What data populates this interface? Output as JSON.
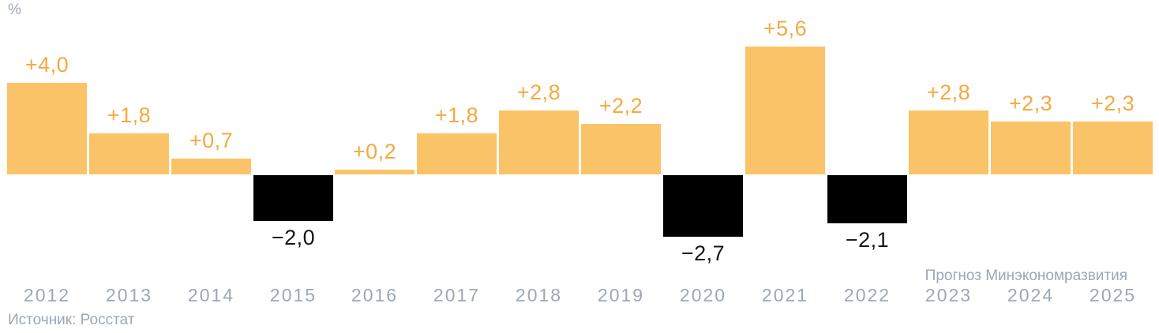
{
  "chart_data": {
    "type": "bar",
    "title": "",
    "unit_label": "%",
    "categories": [
      "2012",
      "2013",
      "2014",
      "2015",
      "2016",
      "2017",
      "2018",
      "2019",
      "2020",
      "2021",
      "2022",
      "2023",
      "2024",
      "2025"
    ],
    "values": [
      4.0,
      1.8,
      0.7,
      -2.0,
      0.2,
      1.8,
      2.8,
      2.2,
      -2.7,
      5.6,
      -2.1,
      2.8,
      2.3,
      2.3
    ],
    "value_labels": [
      "+4,0",
      "+1,8",
      "+0,7",
      "−2,0",
      "+0,2",
      "+1,8",
      "+2,8",
      "+2,2",
      "−2,7",
      "+5,6",
      "−2,1",
      "+2,8",
      "+2,3",
      "+2,3"
    ],
    "forecast_note": "Прогноз Минэкономразвития",
    "forecast_years": [
      "2023",
      "2024",
      "2025"
    ],
    "source_note": "Источник: Росстат",
    "xlabel": "",
    "ylabel": "%",
    "ylim": [
      -3.5,
      7.0
    ],
    "grid": false,
    "legend": false,
    "colors": {
      "positive_bar": "#FBC367",
      "negative_bar": "#000000",
      "positive_label": "#F5A93E",
      "negative_label": "#121519",
      "axis_text": "#9DA7B5"
    }
  }
}
